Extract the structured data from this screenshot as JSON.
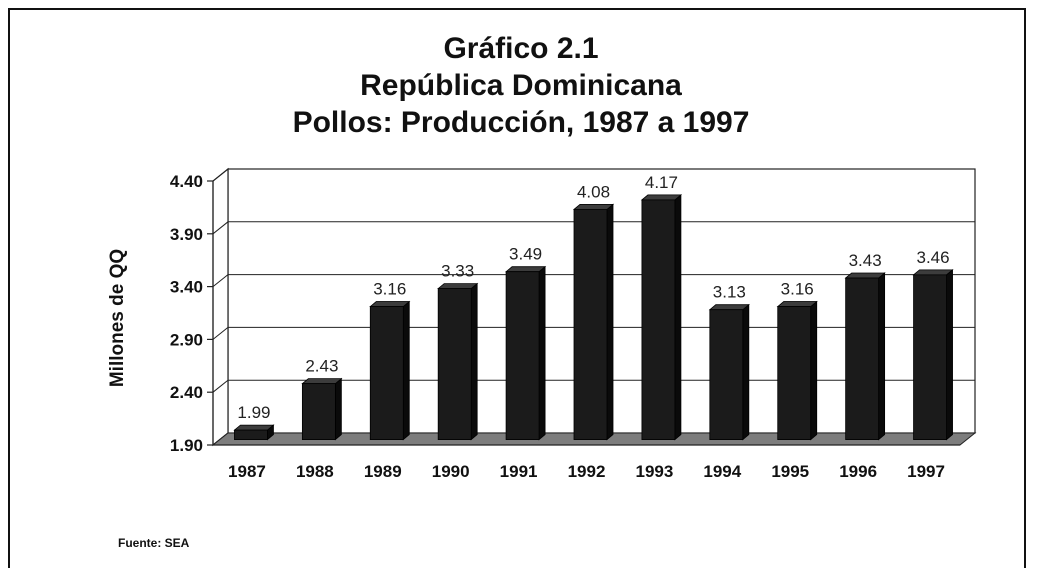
{
  "title_lines": [
    "Gráfico 2.1",
    "República Dominicana",
    "Pollos: Producción, 1987 a 1997"
  ],
  "source": "Fuente: SEA",
  "colors": {
    "bar_front": "#1b1b1b",
    "bar_top": "#3c3c3c",
    "bar_side": "#0a0a0a",
    "floor": "#7d7d7d",
    "grid": "#222222"
  },
  "chart_data": {
    "type": "bar",
    "title": "Gráfico 2.1 República Dominicana Pollos: Producción, 1987 a 1997",
    "xlabel": "",
    "ylabel": "Millones de QQ",
    "categories": [
      "1987",
      "1988",
      "1989",
      "1990",
      "1991",
      "1992",
      "1993",
      "1994",
      "1995",
      "1996",
      "1997"
    ],
    "values": [
      1.99,
      2.43,
      3.16,
      3.33,
      3.49,
      4.08,
      4.17,
      3.13,
      3.16,
      3.43,
      3.46
    ],
    "data_labels": [
      "1.99",
      "2.43",
      "3.16",
      "3.33",
      "3.49",
      "4.08",
      "4.17",
      "3.13",
      "3.16",
      "3.43",
      "3.46"
    ],
    "y_ticks": [
      "1.90",
      "2.40",
      "2.90",
      "3.40",
      "3.90",
      "4.40"
    ],
    "ylim": [
      1.9,
      4.4
    ],
    "grid": true,
    "legend": "none"
  }
}
